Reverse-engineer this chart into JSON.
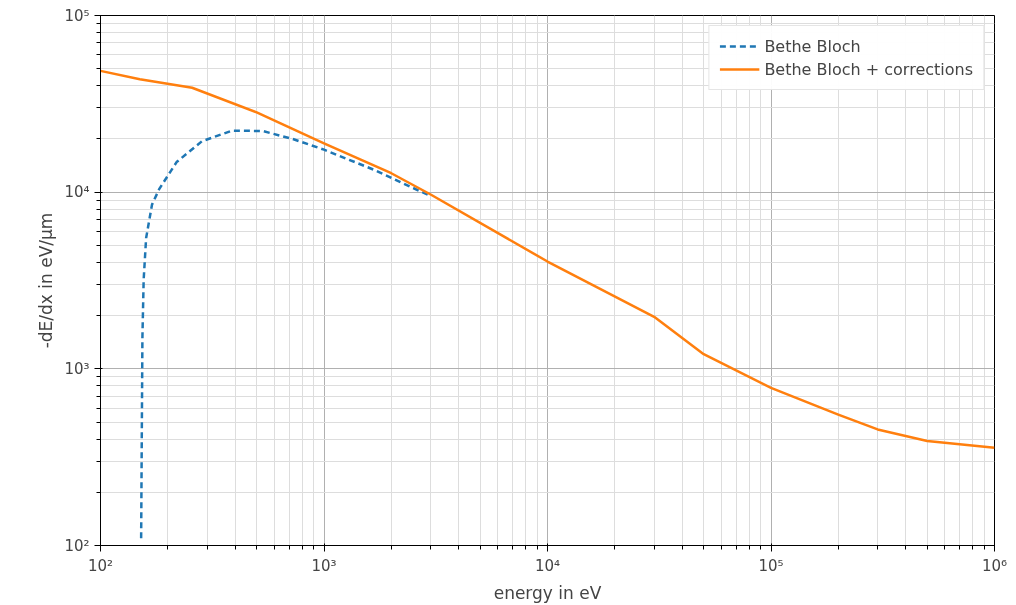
{
  "chart_data": {
    "type": "line",
    "xlabel": "energy in eV",
    "ylabel": "-dE/dx in eV/µm",
    "log": "xy",
    "grid": true,
    "legend": "top right",
    "xlim": [
      100,
      1000000
    ],
    "ylim": [
      100,
      100000
    ],
    "xticks": [
      {
        "value": 100,
        "label": "10²"
      },
      {
        "value": 1000,
        "label": "10³"
      },
      {
        "value": 10000,
        "label": "10⁴"
      },
      {
        "value": 100000,
        "label": "10⁵"
      },
      {
        "value": 1000000,
        "label": "10⁶"
      }
    ],
    "yticks": [
      {
        "value": 100,
        "label": "10²"
      },
      {
        "value": 1000,
        "label": "10³"
      },
      {
        "value": 10000,
        "label": "10⁴"
      },
      {
        "value": 100000,
        "label": "10⁵"
      }
    ],
    "series": [
      {
        "name": "Bethe Bloch",
        "color": "#1f77b4",
        "line_style": "dashed",
        "x": [
          152,
          154,
          156,
          160,
          170,
          183,
          219,
          284,
          388,
          531,
          725,
          1000,
          1670,
          3000
        ],
        "values": [
          110,
          1500,
          3200,
          5500,
          8500,
          10400,
          14800,
          19400,
          22300,
          22200,
          20000,
          17400,
          13400,
          9500
        ]
      },
      {
        "name": "Bethe Bloch + corrections",
        "color": "#ff7f0e",
        "line_style": "solid",
        "x": [
          100,
          150,
          257,
          500,
          1000,
          2000,
          3000,
          10000,
          30000,
          50000,
          100000,
          200000,
          300000,
          500000,
          1000000
        ],
        "values": [
          48600,
          43600,
          39000,
          28300,
          18900,
          12800,
          9700,
          4050,
          1970,
          1210,
          780,
          550,
          454,
          390,
          358
        ]
      }
    ]
  }
}
